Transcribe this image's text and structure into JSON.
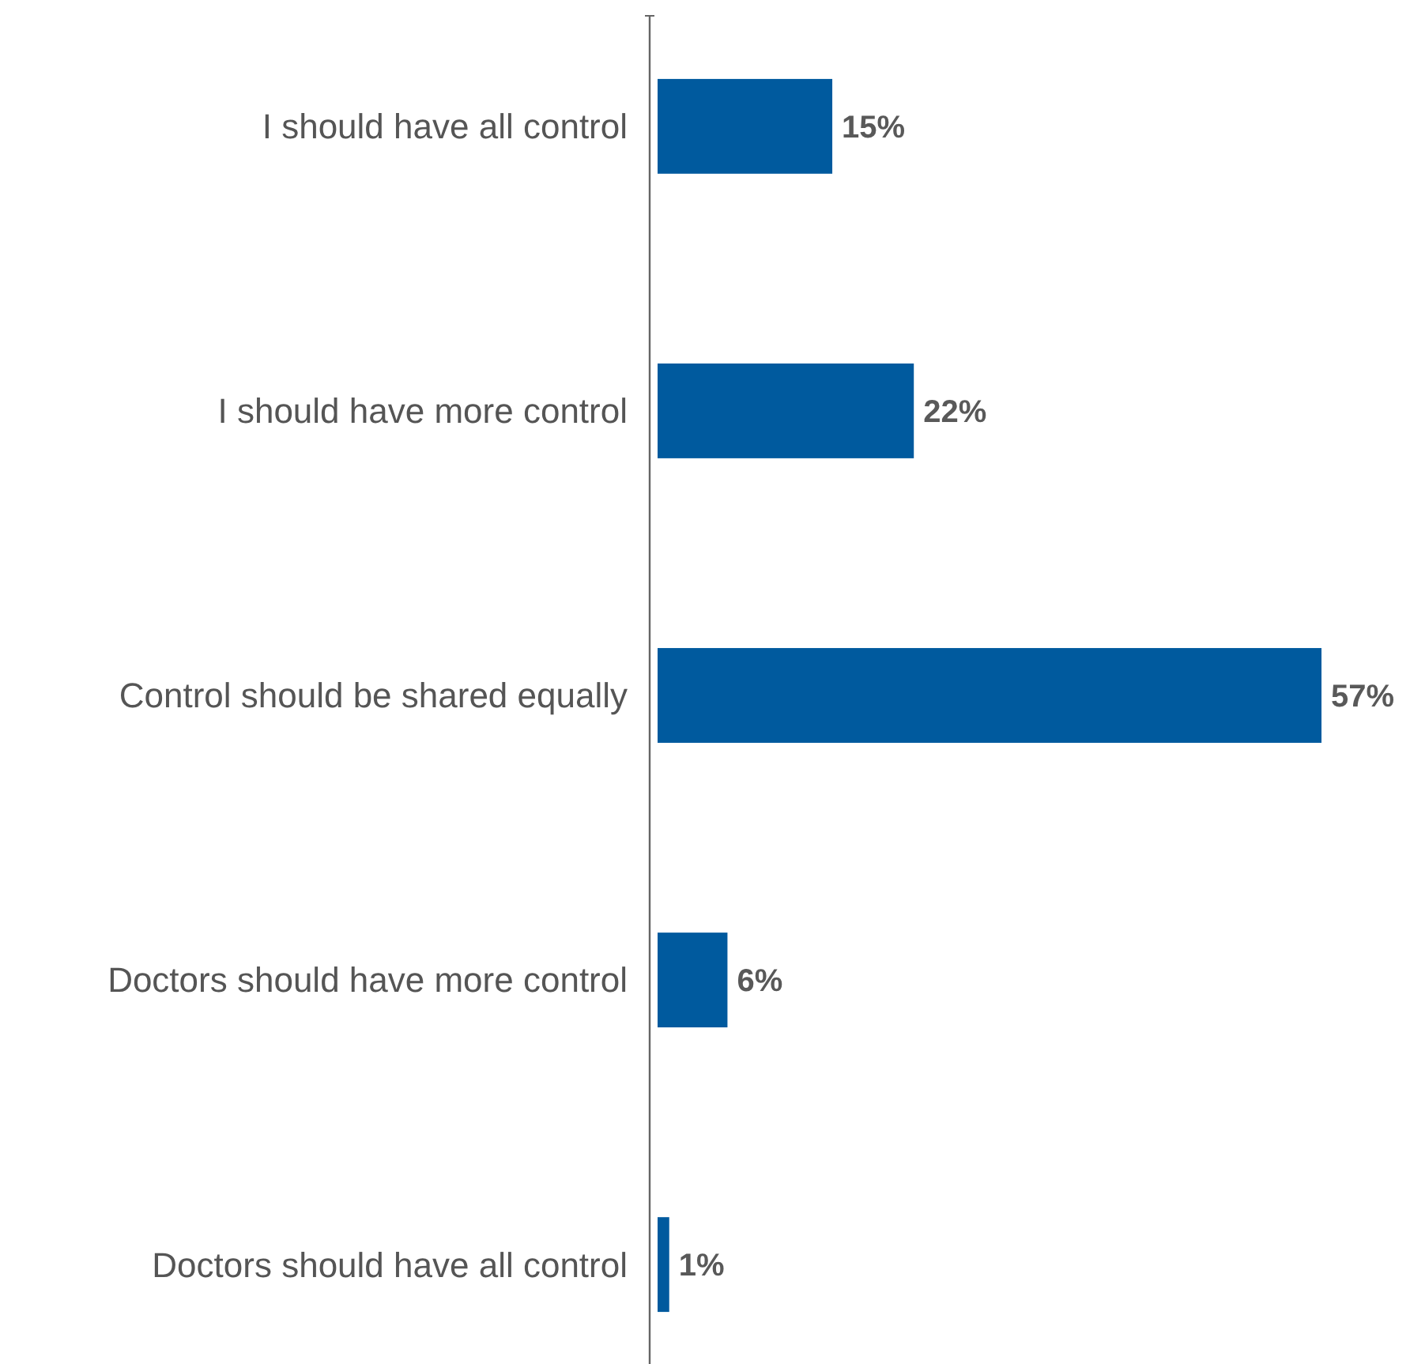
{
  "chart_data": {
    "type": "bar",
    "orientation": "horizontal",
    "categories": [
      "I should have all control",
      "I should have more control",
      "Control should be shared equally",
      "Doctors should have more control",
      "Doctors should have all control"
    ],
    "values": [
      15,
      22,
      57,
      6,
      1
    ],
    "value_labels": [
      "15%",
      "22%",
      "57%",
      "6%",
      "1%"
    ],
    "color": "#005a9e",
    "tick_labels": "y",
    "grid": false
  }
}
